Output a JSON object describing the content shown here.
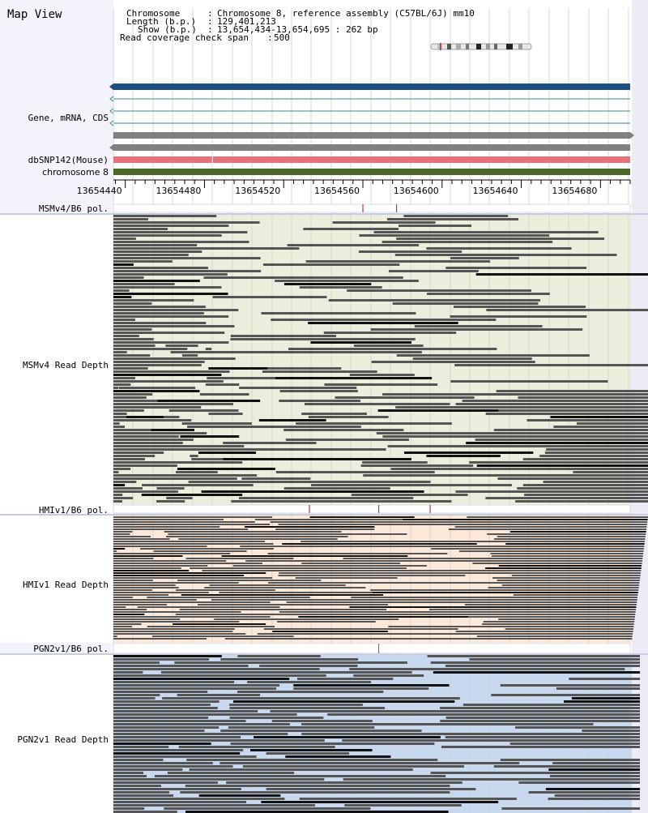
{
  "title": "Map View",
  "header": {
    "chromosome_label": "Chromosome",
    "chromosome_value": "Chromosome 8, reference assembly (C57BL/6J) mm10",
    "length_label": "Length (b.p.)",
    "length_value": "129,401,213",
    "show_label": "Show (b.p.)",
    "show_value": "13,654,434-13,654,695 : 262 bp",
    "coverage_label": "Read coverage check span",
    "coverage_value": "500"
  },
  "tracks": {
    "gene": "Gene, mRNA, CDS",
    "dbsnp": "dbSNP142(Mouse)",
    "chromosome": "chromosome 8",
    "msm_pol": "MSMv4/B6 pol.",
    "msm_depth": "MSMv4 Read Depth",
    "hmi_pol": "HMIv1/B6 pol.",
    "hmi_depth": "HMIv1 Read Depth",
    "pgn_pol": "PGN2v1/B6 pol.",
    "pgn_depth": "PGN2v1 Read Depth"
  },
  "ruler": {
    "start": 13654434,
    "end": 13654695,
    "ticks": [
      "13654440",
      "13654480",
      "13654520",
      "13654560",
      "13654600",
      "13654640",
      "13654680"
    ]
  },
  "polymorphisms": {
    "msm": [
      13654560,
      13654577
    ],
    "hmi": [
      13654533,
      13654568,
      13654594
    ],
    "pgn": [
      13654568
    ]
  },
  "colors": {
    "gene_bar": "#1f4e80",
    "gene_line": "#3a8a8a",
    "gray_bar": "#808080",
    "dbsnp_bar": "#e8707a",
    "chrom_bar": "#4a6628",
    "msm_bg": "#eaeedd",
    "hmi_bg": "#fbe8d8",
    "pgn_bg": "#c8d8ee",
    "read": "#555555",
    "read_dark": "#111111",
    "pol_mark": "#c03050",
    "pgn_mark": "#9060c0"
  }
}
